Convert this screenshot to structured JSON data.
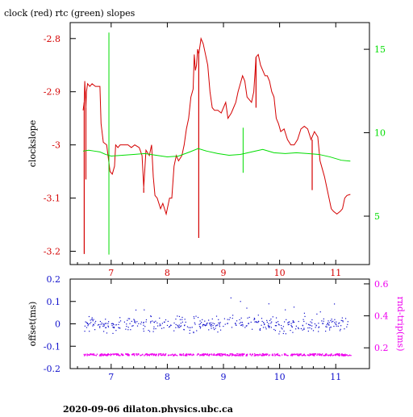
{
  "title": "clock (red) rtc (green) slopes",
  "footer": "2020-09-06  dilaton.physics.ubc.ca",
  "colors": {
    "clock": "#d40000",
    "rtc": "#00dd00",
    "offset": "#1010cc",
    "rtt": "#ee00ee",
    "axis": "#000000"
  },
  "chart_data": [
    {
      "type": "line",
      "title": "clock (red) rtc (green) slopes",
      "ylabel": "clockslope",
      "xlim": [
        6.27,
        11.6
      ],
      "ylim": [
        -3.225,
        -2.77
      ],
      "y2lim": [
        2.1,
        16.6
      ],
      "xticks": [
        "7",
        "8",
        "9",
        "10",
        "11"
      ],
      "yticks": [
        "-2.8",
        "-2.9",
        "-3",
        "-3.1",
        "-3.2"
      ],
      "y2ticks": [
        "5",
        "10",
        "15"
      ],
      "series": [
        {
          "name": "clock",
          "axis": "left",
          "points": [
            [
              6.5,
              -2.935
            ],
            [
              6.52,
              -2.92
            ],
            [
              6.53,
              -2.88
            ],
            [
              6.55,
              -2.93
            ],
            [
              6.56,
              -2.9
            ],
            [
              6.58,
              -2.885
            ],
            [
              6.62,
              -2.89
            ],
            [
              6.66,
              -2.885
            ],
            [
              6.72,
              -2.89
            ],
            [
              6.8,
              -2.89
            ],
            [
              6.82,
              -2.96
            ],
            [
              6.86,
              -2.995
            ],
            [
              6.92,
              -3.0
            ],
            [
              6.98,
              -3.05
            ],
            [
              7.02,
              -3.055
            ],
            [
              7.06,
              -3.04
            ],
            [
              7.08,
              -3.0
            ],
            [
              7.12,
              -3.005
            ],
            [
              7.16,
              -3.0
            ],
            [
              7.22,
              -3.0
            ],
            [
              7.3,
              -3.0
            ],
            [
              7.36,
              -3.005
            ],
            [
              7.42,
              -3.0
            ],
            [
              7.5,
              -3.005
            ],
            [
              7.55,
              -3.02
            ],
            [
              7.58,
              -3.08
            ],
            [
              7.62,
              -3.01
            ],
            [
              7.68,
              -3.02
            ],
            [
              7.72,
              -3.0
            ],
            [
              7.75,
              -3.06
            ],
            [
              7.78,
              -3.095
            ],
            [
              7.82,
              -3.1
            ],
            [
              7.88,
              -3.12
            ],
            [
              7.92,
              -3.11
            ],
            [
              7.98,
              -3.13
            ],
            [
              8.04,
              -3.1
            ],
            [
              8.08,
              -3.1
            ],
            [
              8.12,
              -3.04
            ],
            [
              8.16,
              -3.02
            ],
            [
              8.2,
              -3.03
            ],
            [
              8.26,
              -3.02
            ],
            [
              8.3,
              -3.0
            ],
            [
              8.34,
              -2.97
            ],
            [
              8.38,
              -2.95
            ],
            [
              8.42,
              -2.91
            ],
            [
              8.46,
              -2.895
            ],
            [
              8.48,
              -2.83
            ],
            [
              8.5,
              -2.86
            ],
            [
              8.52,
              -2.85
            ],
            [
              8.54,
              -2.82
            ],
            [
              8.56,
              -2.83
            ],
            [
              8.6,
              -2.8
            ],
            [
              8.64,
              -2.81
            ],
            [
              8.68,
              -2.83
            ],
            [
              8.72,
              -2.85
            ],
            [
              8.76,
              -2.9
            ],
            [
              8.8,
              -2.93
            ],
            [
              8.84,
              -2.935
            ],
            [
              8.9,
              -2.935
            ],
            [
              8.96,
              -2.94
            ],
            [
              9.0,
              -2.93
            ],
            [
              9.04,
              -2.92
            ],
            [
              9.08,
              -2.95
            ],
            [
              9.14,
              -2.94
            ],
            [
              9.18,
              -2.93
            ],
            [
              9.22,
              -2.92
            ],
            [
              9.26,
              -2.9
            ],
            [
              9.3,
              -2.885
            ],
            [
              9.34,
              -2.87
            ],
            [
              9.38,
              -2.88
            ],
            [
              9.42,
              -2.91
            ],
            [
              9.46,
              -2.915
            ],
            [
              9.5,
              -2.92
            ],
            [
              9.54,
              -2.9
            ],
            [
              9.58,
              -2.835
            ],
            [
              9.62,
              -2.83
            ],
            [
              9.66,
              -2.85
            ],
            [
              9.7,
              -2.86
            ],
            [
              9.74,
              -2.87
            ],
            [
              9.78,
              -2.87
            ],
            [
              9.82,
              -2.88
            ],
            [
              9.86,
              -2.9
            ],
            [
              9.9,
              -2.91
            ],
            [
              9.94,
              -2.95
            ],
            [
              9.98,
              -2.96
            ],
            [
              10.02,
              -2.975
            ],
            [
              10.08,
              -2.97
            ],
            [
              10.14,
              -2.99
            ],
            [
              10.2,
              -3.0
            ],
            [
              10.26,
              -3.0
            ],
            [
              10.32,
              -2.99
            ],
            [
              10.38,
              -2.97
            ],
            [
              10.44,
              -2.965
            ],
            [
              10.5,
              -2.97
            ],
            [
              10.56,
              -2.99
            ],
            [
              10.62,
              -2.975
            ],
            [
              10.68,
              -2.985
            ],
            [
              10.72,
              -3.03
            ],
            [
              10.76,
              -3.045
            ],
            [
              10.8,
              -3.06
            ],
            [
              10.84,
              -3.08
            ],
            [
              10.88,
              -3.1
            ],
            [
              10.92,
              -3.12
            ],
            [
              10.96,
              -3.125
            ],
            [
              11.02,
              -3.13
            ],
            [
              11.08,
              -3.125
            ],
            [
              11.12,
              -3.12
            ],
            [
              11.16,
              -3.1
            ],
            [
              11.2,
              -3.095
            ],
            [
              11.26,
              -3.093
            ]
          ],
          "spikes": [
            [
              6.52,
              -3.205
            ],
            [
              6.55,
              -3.065
            ],
            [
              7.58,
              -3.09
            ],
            [
              8.56,
              -3.175
            ],
            [
              9.58,
              -2.93
            ],
            [
              10.58,
              -3.085
            ]
          ]
        },
        {
          "name": "rtc",
          "axis": "right",
          "points": [
            [
              6.5,
              8.9
            ],
            [
              6.6,
              8.95
            ],
            [
              6.7,
              8.9
            ],
            [
              6.8,
              8.85
            ],
            [
              6.9,
              8.7
            ],
            [
              7.0,
              8.6
            ],
            [
              7.2,
              8.65
            ],
            [
              7.4,
              8.7
            ],
            [
              7.6,
              8.75
            ],
            [
              7.8,
              8.65
            ],
            [
              8.0,
              8.55
            ],
            [
              8.2,
              8.6
            ],
            [
              8.4,
              8.85
            ],
            [
              8.55,
              9.05
            ],
            [
              8.7,
              8.9
            ],
            [
              8.9,
              8.75
            ],
            [
              9.1,
              8.65
            ],
            [
              9.3,
              8.7
            ],
            [
              9.5,
              8.85
            ],
            [
              9.7,
              9.0
            ],
            [
              9.9,
              8.8
            ],
            [
              10.1,
              8.75
            ],
            [
              10.3,
              8.8
            ],
            [
              10.5,
              8.75
            ],
            [
              10.7,
              8.7
            ],
            [
              10.9,
              8.55
            ],
            [
              11.1,
              8.35
            ],
            [
              11.26,
              8.3
            ]
          ],
          "spikes": [
            [
              6.96,
              16.0,
              2.7
            ],
            [
              9.35,
              10.3,
              7.6
            ]
          ]
        }
      ]
    },
    {
      "type": "scatter",
      "ylabel": "offset(ms)",
      "y2label": "rnd-trip(ms)",
      "xlim": [
        6.27,
        11.6
      ],
      "ylim": [
        -0.2,
        0.2
      ],
      "y2lim": [
        0.07,
        0.63
      ],
      "xticks": [
        "7",
        "8",
        "9",
        "10",
        "11"
      ],
      "yticks": [
        "0.2",
        "0.1",
        "0",
        "-0.1",
        "-0.2"
      ],
      "y2ticks": [
        "0.6",
        "0.4",
        "0.2"
      ],
      "series": [
        {
          "name": "offset",
          "axis": "left",
          "x_range": [
            6.5,
            11.26
          ],
          "center": 0.0,
          "spread": 0.03
        },
        {
          "name": "rnd-trip",
          "axis": "right",
          "x_range": [
            6.5,
            11.26
          ],
          "center": 0.16,
          "spread": 0.006
        }
      ]
    }
  ]
}
